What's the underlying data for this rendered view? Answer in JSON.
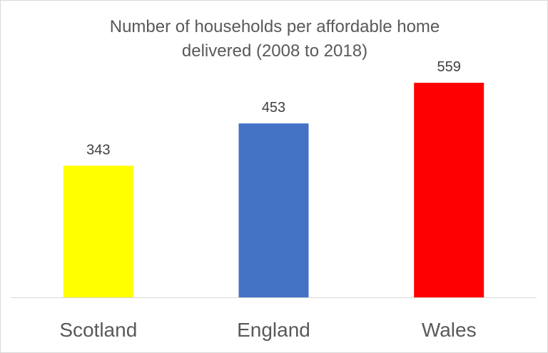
{
  "chart_data": {
    "type": "bar",
    "title_lines": [
      "Number of households per affordable home",
      "delivered (2008 to 2018)"
    ],
    "categories": [
      "Scotland",
      "England",
      "Wales"
    ],
    "values": [
      343,
      453,
      559
    ],
    "data_labels": [
      "343",
      "453",
      "559"
    ],
    "colors": [
      "#FFFF00",
      "#4472C4",
      "#FF0000"
    ],
    "ylim": [
      0,
      600
    ],
    "grid": false,
    "legend": "none",
    "xlabel": "",
    "ylabel": ""
  }
}
